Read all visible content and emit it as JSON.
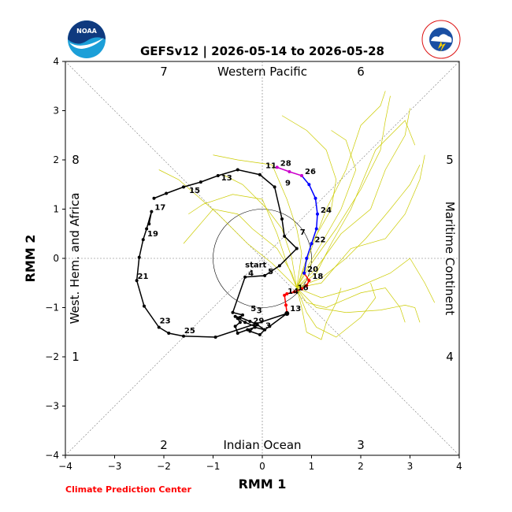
{
  "title": "GEFSv12 | 2026-05-14 to 2026-05-28",
  "credit": "Climate Prediction Center",
  "logos": {
    "left": "NOAA",
    "right": "NATIONAL WEATHER SERVICE"
  },
  "chart_data": {
    "type": "line",
    "xlabel": "RMM 1",
    "ylabel": "RMM 2",
    "xlim": [
      -4,
      4
    ],
    "ylim": [
      -4,
      4
    ],
    "xticks": [
      "−4",
      "−3",
      "−2",
      "−1",
      "0",
      "1",
      "2",
      "3",
      "4"
    ],
    "yticks": [
      "−4",
      "−3",
      "−2",
      "−1",
      "0",
      "1",
      "2",
      "3",
      "4"
    ],
    "regions": {
      "top": "Western Pacific",
      "bottom": "Indian Ocean",
      "left": "West. Hem. and Africa",
      "right": "Maritime Continent"
    },
    "phases": [
      "1",
      "2",
      "3",
      "4",
      "5",
      "6",
      "7",
      "8"
    ],
    "start_label": "start",
    "colors": {
      "observed": "#000000",
      "week1": "#ff0000",
      "week2": "#0000ff",
      "week3": "#cc00cc",
      "ensemble": "#cccc00",
      "circle": "#000000"
    },
    "observed": {
      "x": [
        -2.2,
        -1.95,
        -1.6,
        -1.25,
        -0.9,
        -0.5,
        -0.05,
        0.25,
        0.4,
        0.45,
        0.7,
        0.35,
        0.05,
        -0.35,
        -0.6,
        -0.4,
        -0.5,
        -0.45,
        -0.55,
        -0.5,
        -0.3,
        -0.15,
        0.05,
        -0.05,
        -0.25,
        -0.15,
        -0.35,
        -0.55,
        -0.45,
        -0.25,
        -0.1,
        0.05,
        0.15,
        0.5,
        -0.95,
        -1.6,
        -1.9,
        -2.1,
        -2.4,
        -2.55,
        -2.5,
        -2.42,
        -2.35,
        -2.25,
        -2.3
      ],
      "y": [
        1.22,
        1.32,
        1.45,
        1.55,
        1.68,
        1.8,
        1.7,
        1.45,
        0.8,
        0.45,
        0.2,
        -0.15,
        -0.35,
        -0.38,
        -1.1,
        -1.15,
        -1.22,
        -1.3,
        -1.38,
        -1.52,
        -1.45,
        -1.4,
        -1.45,
        -1.55,
        -1.48,
        -1.38,
        -1.3,
        -1.18,
        -1.2,
        -1.28,
        -1.35,
        -1.45,
        -1.38,
        -1.12,
        -1.6,
        -1.58,
        -1.52,
        -1.4,
        -0.97,
        -0.45,
        0.02,
        0.38,
        0.6,
        0.95,
        0.7
      ],
      "labels": [
        {
          "text": "11",
          "x": 0.0,
          "y": 1.8
        },
        {
          "text": "9",
          "x": 0.4,
          "y": 1.45
        },
        {
          "text": "7",
          "x": 0.7,
          "y": 0.45
        },
        {
          "text": "5",
          "x": 0.05,
          "y": -0.35
        },
        {
          "text": "4",
          "x": -0.35,
          "y": -0.38
        },
        {
          "text": "13",
          "x": -0.9,
          "y": 1.55
        },
        {
          "text": "15",
          "x": -1.55,
          "y": 1.3
        },
        {
          "text": "17",
          "x": -2.25,
          "y": 0.95
        },
        {
          "text": "19",
          "x": -2.4,
          "y": 0.42
        },
        {
          "text": "21",
          "x": -2.6,
          "y": -0.45
        },
        {
          "text": "23",
          "x": -2.15,
          "y": -1.35
        },
        {
          "text": "25",
          "x": -1.65,
          "y": -1.55
        },
        {
          "text": "5",
          "x": -0.3,
          "y": -1.1
        },
        {
          "text": "3",
          "x": -0.18,
          "y": -1.14
        },
        {
          "text": "29",
          "x": -0.25,
          "y": -1.35
        },
        {
          "text": "3",
          "x": 0.0,
          "y": -1.45
        }
      ]
    },
    "forecast_week1": {
      "x": [
        0.5,
        0.48,
        0.45,
        0.5,
        0.65,
        0.8,
        0.9,
        0.95,
        0.85
      ],
      "y": [
        -1.1,
        -0.95,
        -0.75,
        -0.72,
        -0.68,
        -0.62,
        -0.55,
        -0.45,
        -0.3
      ],
      "labels": [
        {
          "text": "13",
          "x": 0.5,
          "y": -1.1
        },
        {
          "text": "14",
          "x": 0.45,
          "y": -0.75
        },
        {
          "text": "16",
          "x": 0.65,
          "y": -0.68
        },
        {
          "text": "18",
          "x": 0.95,
          "y": -0.45
        }
      ]
    },
    "forecast_week2": {
      "x": [
        0.85,
        0.9,
        1.0,
        1.1,
        1.12,
        1.08,
        0.95,
        0.8
      ],
      "y": [
        -0.3,
        0.0,
        0.3,
        0.6,
        0.9,
        1.22,
        1.5,
        1.68
      ],
      "labels": [
        {
          "text": "20",
          "x": 0.85,
          "y": -0.3
        },
        {
          "text": "22",
          "x": 1.0,
          "y": 0.3
        },
        {
          "text": "24",
          "x": 1.12,
          "y": 0.9
        },
        {
          "text": "26",
          "x": 0.8,
          "y": 1.68
        }
      ]
    },
    "forecast_week3": {
      "x": [
        0.8,
        0.55,
        0.3
      ],
      "y": [
        1.68,
        1.76,
        1.85
      ],
      "labels": [
        {
          "text": "28",
          "x": 0.3,
          "y": 1.85
        }
      ]
    },
    "ensemble": [
      {
        "x": [
          0.7,
          1.0,
          1.5,
          2.0,
          2.4,
          2.5,
          2.6
        ],
        "y": [
          -0.6,
          -0.1,
          0.6,
          1.4,
          2.2,
          2.8,
          3.3
        ]
      },
      {
        "x": [
          0.7,
          1.1,
          1.6,
          2.2,
          2.5,
          2.9,
          3.0
        ],
        "y": [
          -0.6,
          -0.2,
          0.5,
          1.0,
          1.8,
          2.5,
          3.05
        ]
      },
      {
        "x": [
          0.7,
          1.2,
          1.8,
          2.5,
          2.9,
          3.2,
          3.3
        ],
        "y": [
          -0.6,
          -0.5,
          0.2,
          0.4,
          0.9,
          1.6,
          2.1
        ]
      },
      {
        "x": [
          0.7,
          1.2,
          1.9,
          2.6,
          3.0,
          3.3,
          3.5
        ],
        "y": [
          -0.6,
          -0.8,
          -0.6,
          -0.3,
          0.0,
          -0.5,
          -0.9
        ]
      },
      {
        "x": [
          0.7,
          1.1,
          1.7,
          2.4,
          2.9,
          3.1,
          3.2
        ],
        "y": [
          -0.6,
          -1.0,
          -1.1,
          -1.05,
          -0.95,
          -1.0,
          -1.3
        ]
      },
      {
        "x": [
          0.7,
          0.9,
          1.1,
          1.5,
          2.0,
          2.3,
          2.2
        ],
        "y": [
          -0.6,
          -1.1,
          -1.4,
          -1.6,
          -1.2,
          -0.8,
          -0.5
        ]
      },
      {
        "x": [
          0.7,
          0.6,
          0.4,
          0.1,
          -0.2,
          -0.4,
          -0.8
        ],
        "y": [
          -0.6,
          0.0,
          0.6,
          1.0,
          1.3,
          1.5,
          1.7
        ]
      },
      {
        "x": [
          0.7,
          0.5,
          0.3,
          0.0,
          -0.6,
          -1.2,
          -1.5
        ],
        "y": [
          -0.6,
          -0.1,
          0.5,
          1.2,
          1.3,
          1.1,
          0.9
        ]
      },
      {
        "x": [
          0.7,
          0.6,
          0.3,
          -0.2,
          -0.5,
          -1.0,
          -1.6
        ],
        "y": [
          -0.6,
          -0.3,
          0.2,
          0.6,
          0.9,
          1.0,
          0.3
        ]
      },
      {
        "x": [
          0.7,
          0.8,
          0.7,
          0.5,
          0.2,
          -0.5,
          -1.0
        ],
        "y": [
          -0.6,
          0.1,
          0.6,
          1.2,
          1.9,
          2.0,
          2.1
        ]
      },
      {
        "x": [
          0.7,
          1.0,
          1.3,
          1.7,
          2.0,
          2.4,
          2.5
        ],
        "y": [
          -0.6,
          0.2,
          1.0,
          1.8,
          2.7,
          3.1,
          3.4
        ]
      },
      {
        "x": [
          0.7,
          1.1,
          1.4,
          1.8,
          2.3,
          2.9,
          3.1
        ],
        "y": [
          -0.6,
          -0.3,
          0.3,
          1.0,
          2.2,
          2.8,
          2.3
        ]
      },
      {
        "x": [
          0.7,
          0.9,
          1.3,
          2.0,
          2.5,
          2.8,
          2.9
        ],
        "y": [
          -0.6,
          -0.9,
          -1.0,
          -0.7,
          -0.6,
          -1.0,
          -1.3
        ]
      },
      {
        "x": [
          0.7,
          0.8,
          0.9,
          1.2,
          1.3,
          1.5,
          1.6
        ],
        "y": [
          -0.6,
          -1.0,
          -1.5,
          -1.65,
          -1.3,
          -0.9,
          -0.6
        ]
      },
      {
        "x": [
          0.7,
          0.9,
          1.2,
          1.6,
          1.9,
          1.7,
          1.4
        ],
        "y": [
          -0.6,
          -0.2,
          0.3,
          1.0,
          1.8,
          2.4,
          2.6
        ]
      },
      {
        "x": [
          0.7,
          1.0,
          1.4,
          1.5,
          1.3,
          0.9,
          0.4
        ],
        "y": [
          -0.6,
          0.3,
          1.0,
          1.6,
          2.2,
          2.6,
          2.9
        ]
      },
      {
        "x": [
          0.7,
          0.5,
          0.2,
          -0.3,
          -0.9,
          -1.7,
          -2.1
        ],
        "y": [
          -0.6,
          -0.4,
          -0.1,
          0.3,
          0.9,
          1.6,
          1.8
        ]
      },
      {
        "x": [
          0.7,
          1.2,
          1.7,
          2.1,
          2.6,
          3.0,
          3.2
        ],
        "y": [
          -0.6,
          -0.4,
          0.0,
          0.4,
          1.0,
          1.5,
          1.9
        ]
      }
    ]
  }
}
